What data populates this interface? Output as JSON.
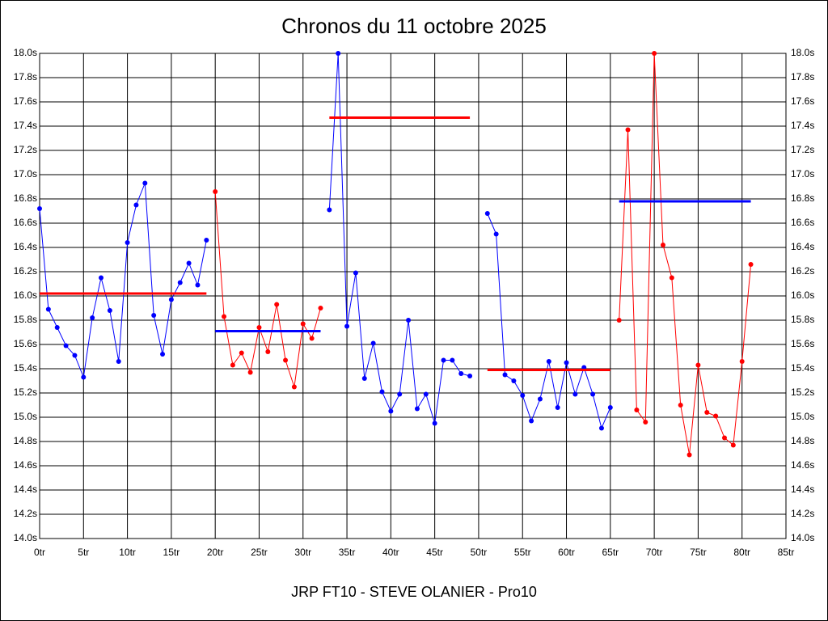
{
  "chart_data": {
    "type": "line",
    "title": "Chronos du 11 octobre 2025",
    "x_label": "JRP FT10 - STEVE OLANIER - Pro10",
    "xlim": [
      0,
      85
    ],
    "ylim": [
      14.0,
      18.0
    ],
    "grid": true,
    "xticks": [
      {
        "value": 0,
        "label": "0tr"
      },
      {
        "value": 5,
        "label": "5tr"
      },
      {
        "value": 10,
        "label": "10tr"
      },
      {
        "value": 15,
        "label": "15tr"
      },
      {
        "value": 20,
        "label": "20tr"
      },
      {
        "value": 25,
        "label": "25tr"
      },
      {
        "value": 30,
        "label": "30tr"
      },
      {
        "value": 35,
        "label": "35tr"
      },
      {
        "value": 40,
        "label": "40tr"
      },
      {
        "value": 45,
        "label": "45tr"
      },
      {
        "value": 50,
        "label": "50tr"
      },
      {
        "value": 55,
        "label": "55tr"
      },
      {
        "value": 60,
        "label": "60tr"
      },
      {
        "value": 65,
        "label": "65tr"
      },
      {
        "value": 70,
        "label": "70tr"
      },
      {
        "value": 75,
        "label": "75tr"
      },
      {
        "value": 80,
        "label": "80tr"
      },
      {
        "value": 85,
        "label": "85tr"
      }
    ],
    "yticks": [
      {
        "value": 14.0,
        "label": "14.0s"
      },
      {
        "value": 14.2,
        "label": "14.2s"
      },
      {
        "value": 14.4,
        "label": "14.4s"
      },
      {
        "value": 14.6,
        "label": "14.6s"
      },
      {
        "value": 14.8,
        "label": "14.8s"
      },
      {
        "value": 15.0,
        "label": "15.0s"
      },
      {
        "value": 15.2,
        "label": "15.2s"
      },
      {
        "value": 15.4,
        "label": "15.4s"
      },
      {
        "value": 15.6,
        "label": "15.6s"
      },
      {
        "value": 15.8,
        "label": "15.8s"
      },
      {
        "value": 16.0,
        "label": "16.0s"
      },
      {
        "value": 16.2,
        "label": "16.2s"
      },
      {
        "value": 16.4,
        "label": "16.4s"
      },
      {
        "value": 16.6,
        "label": "16.6s"
      },
      {
        "value": 16.8,
        "label": "16.8s"
      },
      {
        "value": 17.0,
        "label": "17.0s"
      },
      {
        "value": 17.2,
        "label": "17.2s"
      },
      {
        "value": 17.4,
        "label": "17.4s"
      },
      {
        "value": 17.6,
        "label": "17.6s"
      },
      {
        "value": 17.8,
        "label": "17.8s"
      },
      {
        "value": 18.0,
        "label": "18.0s"
      }
    ],
    "series": [
      {
        "color": "#0000ff",
        "x": [
          0,
          1,
          2,
          3,
          4,
          5,
          6,
          7,
          8,
          9,
          10,
          11,
          12,
          13,
          14,
          15,
          16,
          17,
          18,
          19
        ],
        "values": [
          16.72,
          15.89,
          15.74,
          15.59,
          15.51,
          15.33,
          15.82,
          16.15,
          15.88,
          15.46,
          16.44,
          16.75,
          16.93,
          15.84,
          15.52,
          15.97,
          16.11,
          16.27,
          16.09,
          16.46
        ]
      },
      {
        "color": "#ff0000",
        "x": [
          20,
          21,
          22,
          23,
          24,
          25,
          26,
          27,
          28,
          29,
          30,
          31,
          32
        ],
        "values": [
          16.86,
          15.83,
          15.43,
          15.53,
          15.37,
          15.74,
          15.54,
          15.93,
          15.47,
          15.25,
          15.77,
          15.65,
          15.9
        ]
      },
      {
        "color": "#0000ff",
        "x": [
          33,
          34,
          35,
          36,
          37,
          38,
          39,
          40,
          41,
          42,
          43,
          44,
          45,
          46,
          47,
          48,
          49
        ],
        "values": [
          16.71,
          18.0,
          15.75,
          16.19,
          15.32,
          15.61,
          15.21,
          15.05,
          15.19,
          15.8,
          15.07,
          15.19,
          14.95,
          15.47,
          15.47,
          15.36,
          15.34
        ]
      },
      {
        "color": "#0000ff",
        "x": [
          51,
          52,
          53,
          54,
          55,
          56,
          57,
          58,
          59,
          60,
          61,
          62,
          63,
          64,
          65
        ],
        "values": [
          16.68,
          16.51,
          15.35,
          15.3,
          15.18,
          14.97,
          15.15,
          15.46,
          15.08,
          15.45,
          15.19,
          15.41,
          15.19,
          14.91,
          15.08
        ]
      },
      {
        "color": "#ff0000",
        "x": [
          66,
          67,
          68,
          69,
          70,
          71,
          72,
          73,
          74,
          75,
          76,
          77,
          78,
          79,
          80,
          81
        ],
        "values": [
          15.8,
          17.37,
          15.06,
          14.96,
          18.0,
          16.42,
          16.15,
          15.1,
          14.69,
          15.43,
          15.04,
          15.01,
          14.83,
          14.77,
          15.46,
          16.26
        ]
      }
    ],
    "average_lines": [
      {
        "color": "#ff0000",
        "x_start": 0,
        "x_end": 19,
        "value": 16.02
      },
      {
        "color": "#0000ff",
        "x_start": 20,
        "x_end": 32,
        "value": 15.71
      },
      {
        "color": "#ff0000",
        "x_start": 33,
        "x_end": 49,
        "value": 17.47
      },
      {
        "color": "#ff0000",
        "x_start": 51,
        "x_end": 65,
        "value": 15.39
      },
      {
        "color": "#0000ff",
        "x_start": 66,
        "x_end": 81,
        "value": 16.78
      }
    ]
  }
}
